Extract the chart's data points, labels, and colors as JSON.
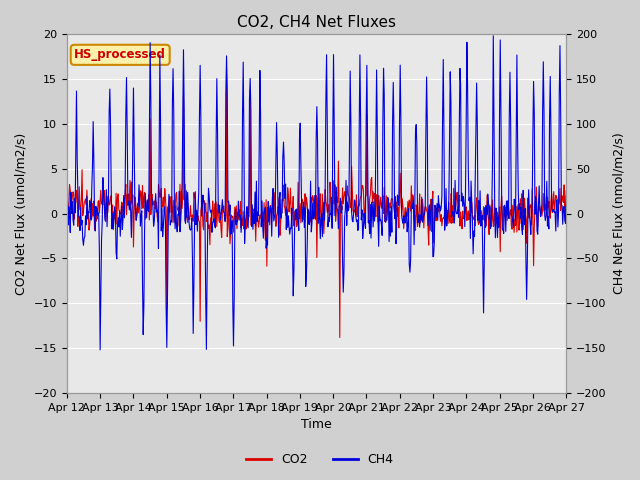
{
  "title": "CO2, CH4 Net Fluxes",
  "xlabel": "Time",
  "ylabel_left": "CO2 Net Flux (umol/m2/s)",
  "ylabel_right": "CH4 Net Flux (nmol/m2/s)",
  "ylim_left": [
    -20,
    20
  ],
  "ylim_right": [
    -200,
    200
  ],
  "x_tick_labels": [
    "Apr 12",
    "Apr 13",
    "Apr 14",
    "Apr 15",
    "Apr 16",
    "Apr 17",
    "Apr 18",
    "Apr 19",
    "Apr 20",
    "Apr 21",
    "Apr 22",
    "Apr 23",
    "Apr 24",
    "Apr 25",
    "Apr 26",
    "Apr 27"
  ],
  "annotation_text": "HS_processed",
  "annotation_color": "#cc0000",
  "co2_color": "#dd0000",
  "ch4_color": "#0000dd",
  "background_color": "#d0d0d0",
  "plot_bg_color": "#e8e8e8",
  "legend_labels": [
    "CO2",
    "CH4"
  ],
  "grid_color": "white",
  "title_fontsize": 11,
  "axis_fontsize": 9,
  "tick_fontsize": 8,
  "yticks_left": [
    -20,
    -15,
    -10,
    -5,
    0,
    5,
    10,
    15,
    20
  ],
  "yticks_right": [
    -200,
    -150,
    -100,
    -50,
    0,
    50,
    100,
    150,
    200
  ]
}
